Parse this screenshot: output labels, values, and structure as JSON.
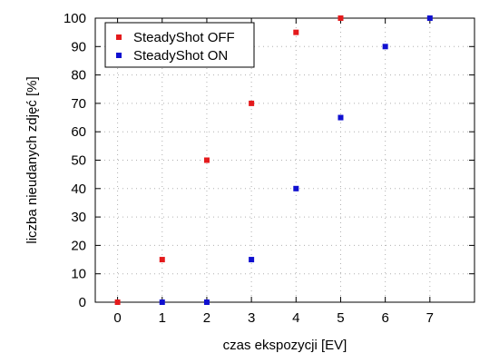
{
  "chart_data": {
    "type": "scatter",
    "xlabel": "czas ekspozycji [EV]",
    "ylabel": "liczba nieudanych zdjęć [%]",
    "xlim": [
      -0.5,
      8
    ],
    "ylim": [
      0,
      100
    ],
    "xticks": [
      0,
      1,
      2,
      3,
      4,
      5,
      6,
      7
    ],
    "yticks": [
      0,
      10,
      20,
      30,
      40,
      50,
      60,
      70,
      80,
      90,
      100
    ],
    "grid": true,
    "legend_position": "top-left",
    "series": [
      {
        "name": "SteadyShot OFF",
        "color": "#e41a1c",
        "x": [
          0,
          1,
          2,
          3,
          4,
          5
        ],
        "y": [
          0,
          15,
          50,
          70,
          95,
          100
        ]
      },
      {
        "name": "SteadyShot ON",
        "color": "#1010d0",
        "x": [
          1,
          2,
          3,
          4,
          5,
          6,
          7
        ],
        "y": [
          0,
          0,
          15,
          40,
          65,
          90,
          100
        ]
      }
    ]
  }
}
